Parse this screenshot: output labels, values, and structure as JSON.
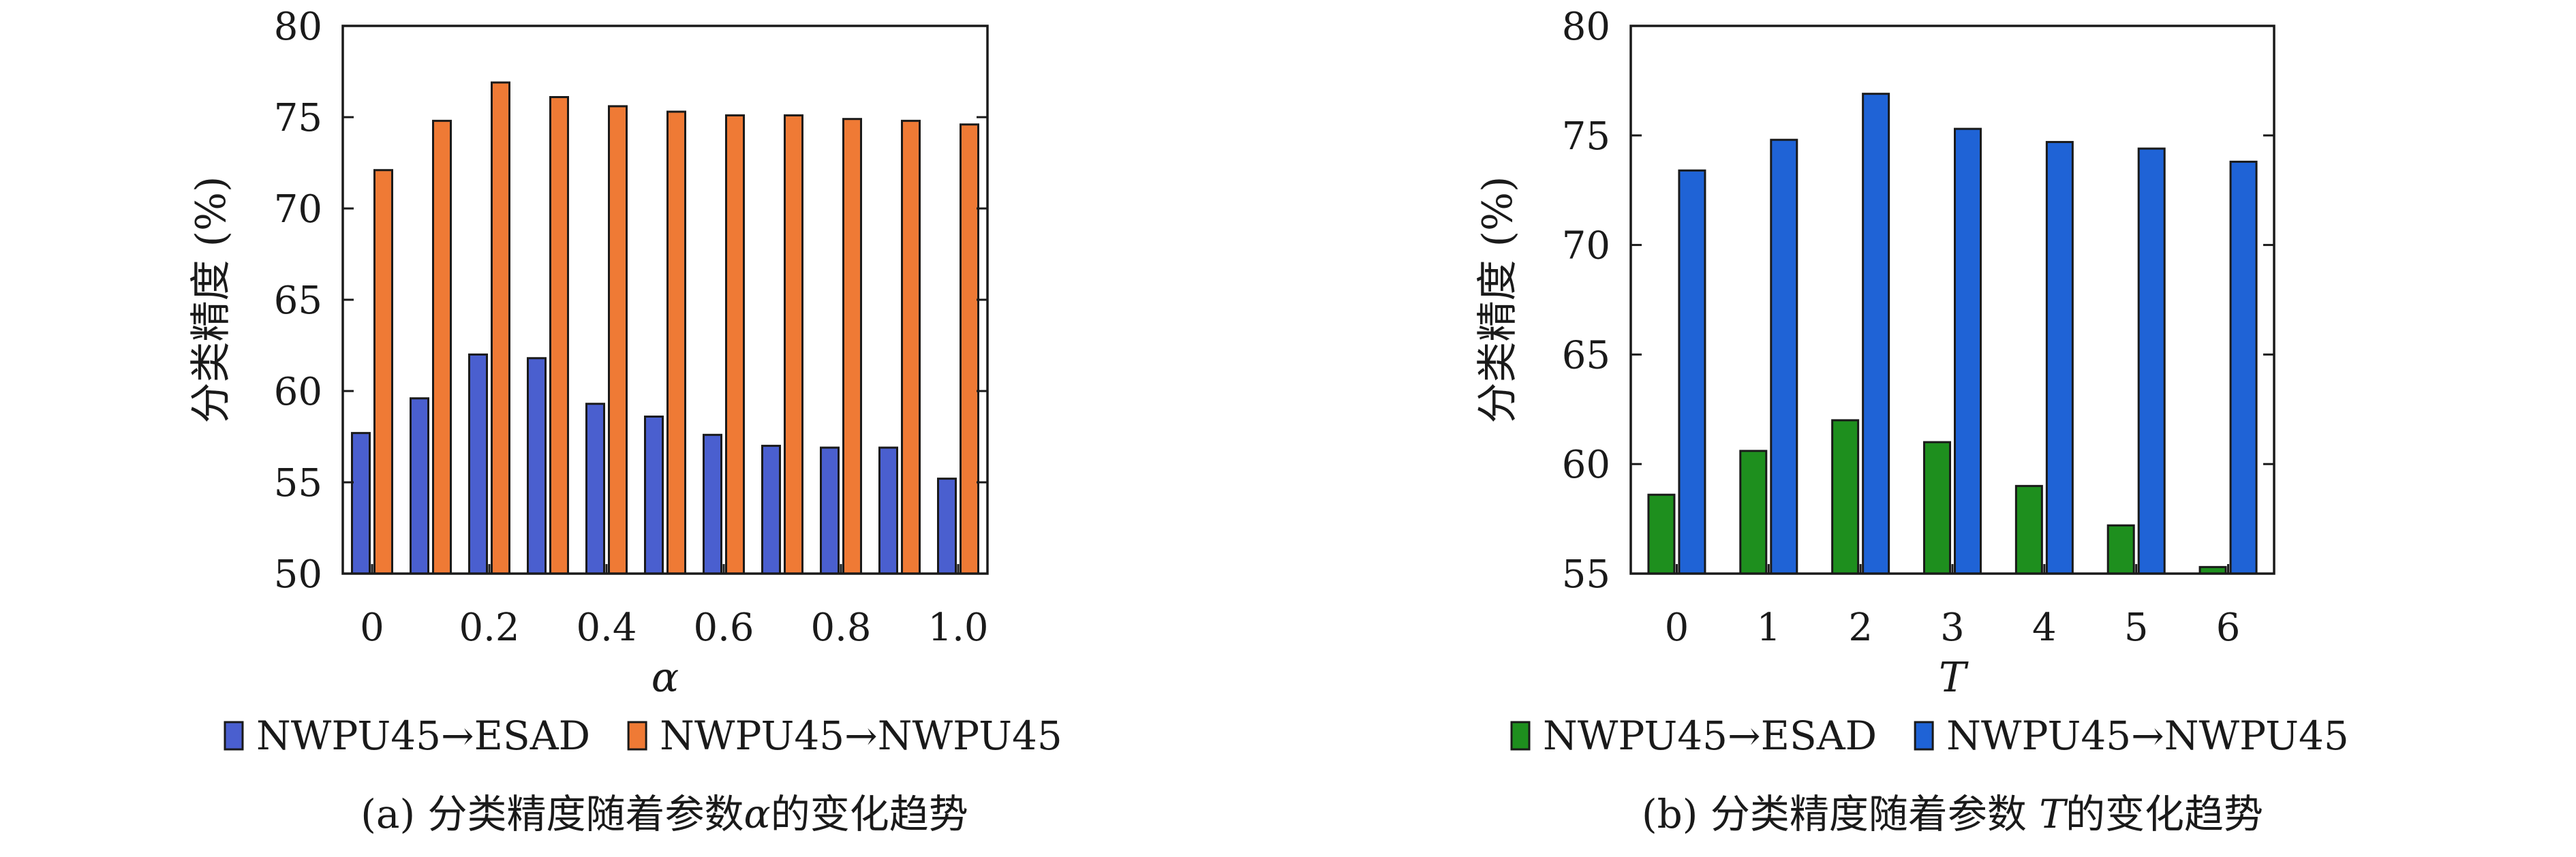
{
  "chart_data": [
    {
      "type": "bar",
      "ylabel": "分类精度 (%)",
      "xlabel": "α",
      "x": [
        0,
        0.1,
        0.2,
        0.3,
        0.4,
        0.5,
        0.6,
        0.7,
        0.8,
        0.9,
        1.0
      ],
      "x_tick_labels": [
        "0",
        "0.2",
        "0.4",
        "0.6",
        "0.8",
        "1.0"
      ],
      "ylim": [
        50,
        80
      ],
      "y_ticks": [
        50,
        55,
        60,
        65,
        70,
        75,
        80
      ],
      "grid": false,
      "legend_position": "bottom",
      "series": [
        {
          "name": "NWPU45→ESAD",
          "color": "#4a5fcf",
          "values": [
            57.7,
            59.6,
            62.0,
            61.8,
            59.3,
            58.6,
            57.6,
            57.0,
            56.9,
            56.9,
            55.2
          ]
        },
        {
          "name": "NWPU45→NWPU45",
          "color": "#ef7a35",
          "values": [
            72.1,
            74.8,
            76.9,
            76.1,
            75.6,
            75.3,
            75.1,
            75.1,
            74.9,
            74.8,
            74.6
          ]
        }
      ],
      "caption": {
        "prefix": "(a) 分类精度随着参数",
        "symbol": "α",
        "suffix": "的变化趋势"
      }
    },
    {
      "type": "bar",
      "ylabel": "分类精度 (%)",
      "xlabel": "T",
      "x": [
        0,
        1,
        2,
        3,
        4,
        5,
        6
      ],
      "x_tick_labels": [
        "0",
        "1",
        "2",
        "3",
        "4",
        "5",
        "6"
      ],
      "ylim": [
        55,
        80
      ],
      "y_ticks": [
        55,
        60,
        65,
        70,
        75,
        80
      ],
      "grid": false,
      "legend_position": "bottom",
      "series": [
        {
          "name": "NWPU45→ESAD",
          "color": "#1e8f1e",
          "values": [
            58.6,
            60.6,
            62.0,
            61.0,
            59.0,
            57.2,
            55.3
          ]
        },
        {
          "name": "NWPU45→NWPU45",
          "color": "#1f63d6",
          "values": [
            73.4,
            74.8,
            76.9,
            75.3,
            74.7,
            74.4,
            73.8
          ]
        }
      ],
      "caption": {
        "prefix": "(b) 分类精度随着参数 ",
        "symbol": "T",
        "suffix": "的变化趋势"
      }
    }
  ]
}
